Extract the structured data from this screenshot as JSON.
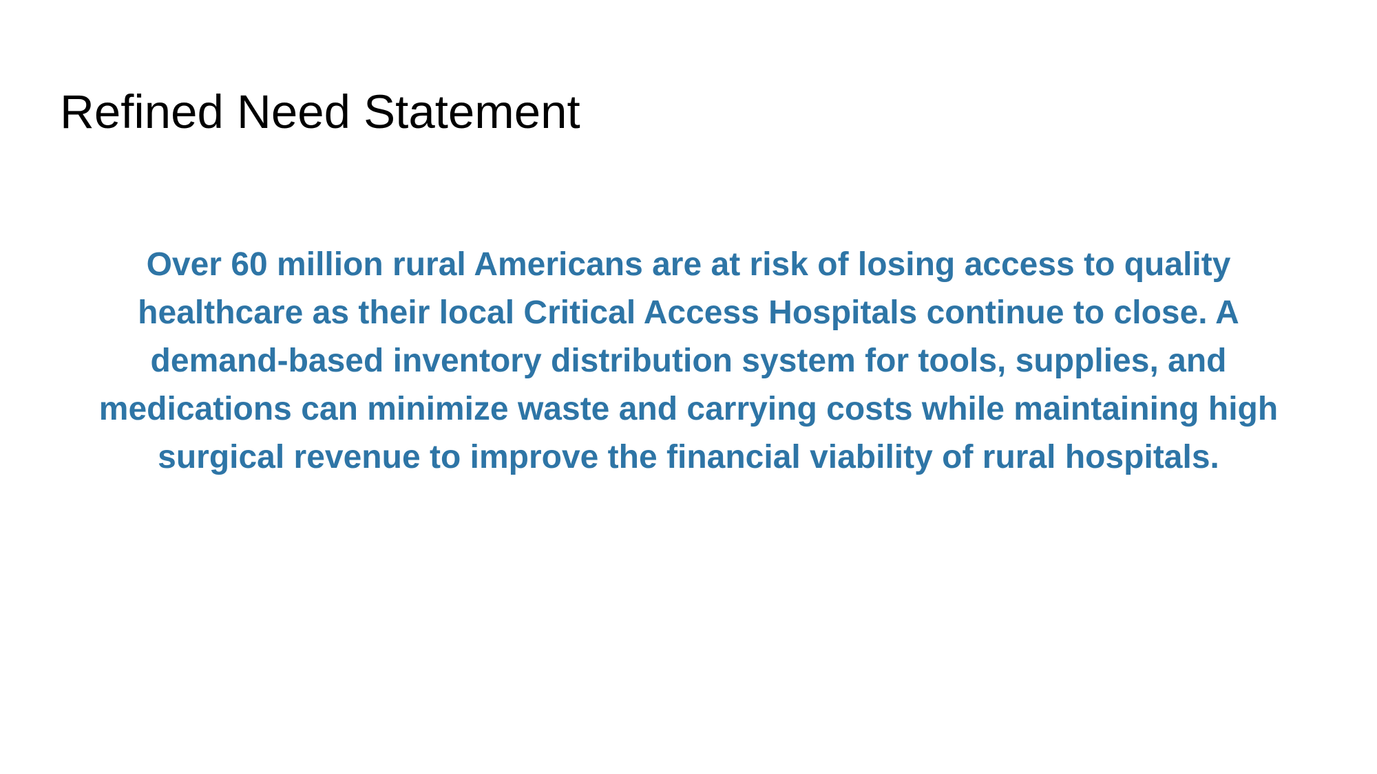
{
  "slide": {
    "title": "Refined Need Statement",
    "statement_lines": [
      "Over 60 million rural Americans are at risk of losing access to quality",
      "healthcare as their local Critical Access Hospitals continue to close. A",
      "demand-based inventory distribution system for tools, supplies, and",
      "medications can minimize waste and carrying costs while maintaining high",
      "surgical revenue to improve the financial viability of rural hospitals."
    ]
  },
  "colors": {
    "title": "#000000",
    "statement": "#2E75A6",
    "background": "#FFFFFF"
  }
}
